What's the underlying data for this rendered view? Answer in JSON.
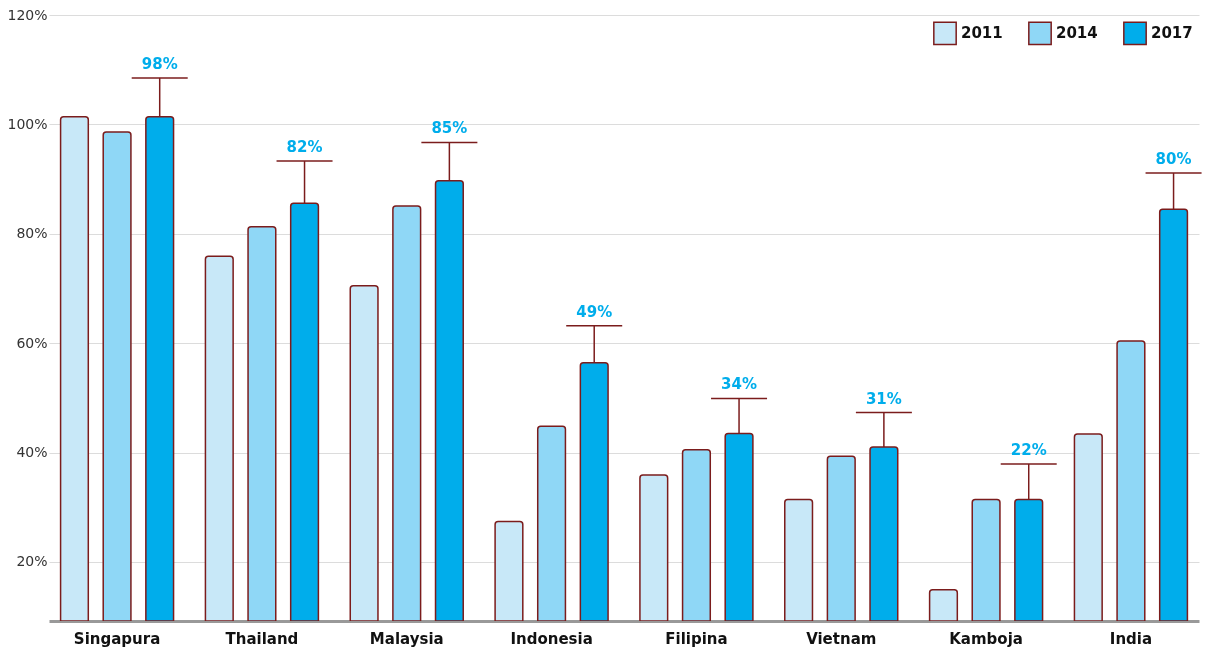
{
  "chart_data": {
    "type": "bar",
    "categories": [
      "Singapura",
      "Thailand",
      "Malaysia",
      "Indonesia",
      "Filipina",
      "Vietnam",
      "Kamboja",
      "India"
    ],
    "series": [
      {
        "name": "2011",
        "color": "#c8e8f8",
        "values": [
          101.4,
          75.9,
          70.5,
          27.4,
          35.9,
          31.4,
          14.9,
          43.4
        ]
      },
      {
        "name": "2014",
        "color": "#8fd7f6",
        "values": [
          98.6,
          81.3,
          85.1,
          44.8,
          40.5,
          39.3,
          31.4,
          60.4
        ]
      },
      {
        "name": "2017",
        "color": "#00adeb",
        "values": [
          101.4,
          85.6,
          89.7,
          56.4,
          43.5,
          41.0,
          31.4,
          84.5
        ],
        "errors": [
          [
            101.4,
            108.5
          ],
          [
            85.6,
            93.3
          ],
          [
            89.7,
            96.7
          ],
          [
            56.4,
            63.2
          ],
          [
            43.5,
            49.9
          ],
          [
            41.0,
            47.3
          ],
          [
            31.4,
            37.9
          ],
          [
            84.5,
            91.1
          ]
        ]
      }
    ],
    "annotations": [
      "98%",
      "82%",
      "85%",
      "49%",
      "34%",
      "31%",
      "22%",
      "80%"
    ],
    "ylim": [
      9.2,
      120
    ],
    "yticks": [
      {
        "value": 20,
        "label": "20%"
      },
      {
        "value": 40,
        "label": "40%"
      },
      {
        "value": 60,
        "label": "60%"
      },
      {
        "value": 80,
        "label": "80%"
      },
      {
        "value": 100,
        "label": "100%"
      },
      {
        "value": 120,
        "label": "120%"
      }
    ],
    "grid": "y",
    "legend": "top right"
  }
}
